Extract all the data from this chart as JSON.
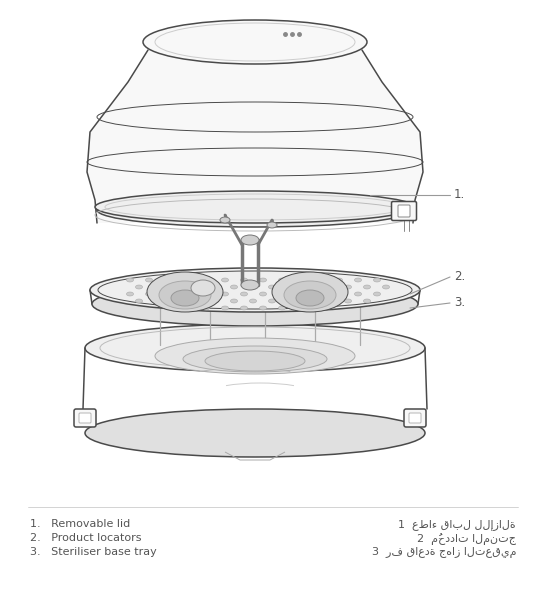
{
  "background_color": "#ffffff",
  "line_color": "#4a4a4a",
  "label_color": "#555555",
  "light_fill": "#f8f8f8",
  "mid_fill": "#efefef",
  "dark_fill": "#e0e0e0",
  "labels_en": [
    "1.   Removable lid",
    "2.   Product locators",
    "3.   Steriliser base tray"
  ],
  "labels_ar": [
    "عطاء قابل للإزالة",
    "مُحددات المنتج",
    "رف قاعدة جهاز التعقيم"
  ],
  "labels_ar_prefix": [
    "1  ",
    "2  ",
    "3  "
  ],
  "label_fontsize": 8.0,
  "callout_color": "#999999"
}
